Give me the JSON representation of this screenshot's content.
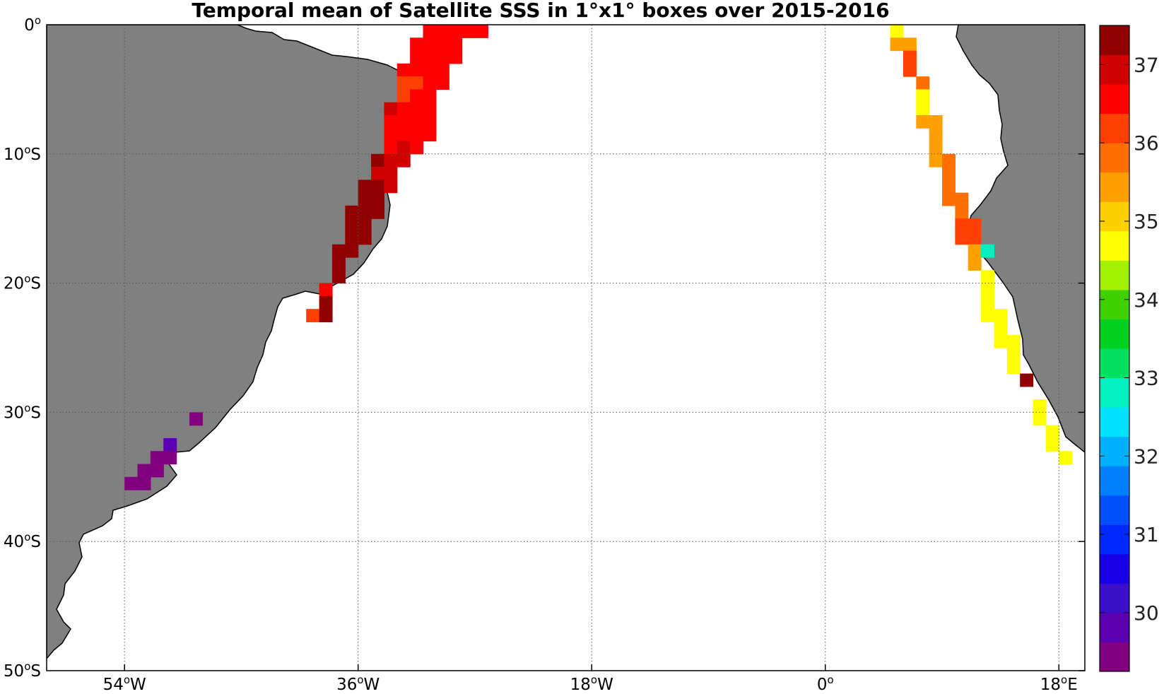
{
  "title": "Temporal mean of Satellite SSS in 1°x1° boxes over 2015-2016",
  "map": {
    "lon_range": [
      -60,
      20
    ],
    "lat_range": [
      -50,
      0
    ],
    "land_color": "#808080",
    "ocean_color": "#ffffff",
    "grid": "dotted",
    "lon_ticks": [
      {
        "value": -54,
        "base": "54",
        "deg": "o",
        "hemi": "W"
      },
      {
        "value": -36,
        "base": "36",
        "deg": "o",
        "hemi": "W"
      },
      {
        "value": -18,
        "base": "18",
        "deg": "o",
        "hemi": "W"
      },
      {
        "value": 0,
        "base": "0",
        "deg": "o",
        "hemi": ""
      },
      {
        "value": 18,
        "base": "18",
        "deg": "o",
        "hemi": "E"
      }
    ],
    "lat_ticks": [
      {
        "value": 0,
        "base": "0",
        "deg": "o",
        "hemi": ""
      },
      {
        "value": -10,
        "base": "10",
        "deg": "o",
        "hemi": "S"
      },
      {
        "value": -20,
        "base": "20",
        "deg": "o",
        "hemi": "S"
      },
      {
        "value": -30,
        "base": "30",
        "deg": "o",
        "hemi": "S"
      },
      {
        "value": -40,
        "base": "40",
        "deg": "o",
        "hemi": "S"
      },
      {
        "value": -50,
        "base": "50",
        "deg": "o",
        "hemi": "S"
      }
    ]
  },
  "colorbar": {
    "vmin": 29.25,
    "vmax": 37.5,
    "colors": [
      "#800080",
      "#5a00b0",
      "#3a10c8",
      "#1a00e8",
      "#0028ff",
      "#0050ff",
      "#0080ff",
      "#00b0ff",
      "#00e0ff",
      "#00f0c0",
      "#00e060",
      "#00d020",
      "#40d000",
      "#a0f000",
      "#ffff00",
      "#ffd000",
      "#ffa000",
      "#ff7000",
      "#ff4000",
      "#ff0000",
      "#d00000",
      "#900000"
    ],
    "ticks": [
      {
        "value": 30,
        "label": "30"
      },
      {
        "value": 31,
        "label": "31"
      },
      {
        "value": 32,
        "label": "32"
      },
      {
        "value": 33,
        "label": "33"
      },
      {
        "value": 34,
        "label": "34"
      },
      {
        "value": 35,
        "label": "35"
      },
      {
        "value": 36,
        "label": "36"
      },
      {
        "value": 37,
        "label": "37"
      }
    ]
  },
  "cells": [
    {
      "lon": -31,
      "lat": 0,
      "sss": 36.5
    },
    {
      "lon": -30,
      "lat": 0,
      "sss": 36.5
    },
    {
      "lon": -29,
      "lat": 0,
      "sss": 36.5
    },
    {
      "lon": -28,
      "lat": 0,
      "sss": 36.5
    },
    {
      "lon": -27,
      "lat": 0,
      "sss": 36.5
    },
    {
      "lon": -32,
      "lat": -1,
      "sss": 36.5
    },
    {
      "lon": -31,
      "lat": -1,
      "sss": 36.5
    },
    {
      "lon": -30,
      "lat": -1,
      "sss": 36.5
    },
    {
      "lon": -29,
      "lat": -1,
      "sss": 36.5
    },
    {
      "lon": -32,
      "lat": -2,
      "sss": 36.5
    },
    {
      "lon": -31,
      "lat": -2,
      "sss": 36.5
    },
    {
      "lon": -30,
      "lat": -2,
      "sss": 36.5
    },
    {
      "lon": -29,
      "lat": -2,
      "sss": 36.5
    },
    {
      "lon": -33,
      "lat": -3,
      "sss": 36.5
    },
    {
      "lon": -32,
      "lat": -3,
      "sss": 36.5
    },
    {
      "lon": -31,
      "lat": -3,
      "sss": 36.5
    },
    {
      "lon": -30,
      "lat": -3,
      "sss": 36.5
    },
    {
      "lon": -33,
      "lat": -4,
      "sss": 36.2
    },
    {
      "lon": -32,
      "lat": -4,
      "sss": 36.2
    },
    {
      "lon": -31,
      "lat": -4,
      "sss": 36.5
    },
    {
      "lon": -30,
      "lat": -4,
      "sss": 36.5
    },
    {
      "lon": -33,
      "lat": -5,
      "sss": 36.2
    },
    {
      "lon": -32,
      "lat": -5,
      "sss": 36.5
    },
    {
      "lon": -31,
      "lat": -5,
      "sss": 36.5
    },
    {
      "lon": -34,
      "lat": -6,
      "sss": 36.9
    },
    {
      "lon": -33,
      "lat": -6,
      "sss": 36.5
    },
    {
      "lon": -32,
      "lat": -6,
      "sss": 36.5
    },
    {
      "lon": -31,
      "lat": -6,
      "sss": 36.5
    },
    {
      "lon": -34,
      "lat": -7,
      "sss": 36.5
    },
    {
      "lon": -33,
      "lat": -7,
      "sss": 36.5
    },
    {
      "lon": -32,
      "lat": -7,
      "sss": 36.5
    },
    {
      "lon": -31,
      "lat": -7,
      "sss": 36.5
    },
    {
      "lon": -34,
      "lat": -8,
      "sss": 36.5
    },
    {
      "lon": -33,
      "lat": -8,
      "sss": 36.5
    },
    {
      "lon": -32,
      "lat": -8,
      "sss": 36.5
    },
    {
      "lon": -31,
      "lat": -8,
      "sss": 36.5
    },
    {
      "lon": -34,
      "lat": -9,
      "sss": 36.5
    },
    {
      "lon": -33,
      "lat": -9,
      "sss": 36.9
    },
    {
      "lon": -32,
      "lat": -9,
      "sss": 36.5
    },
    {
      "lon": -35,
      "lat": -10,
      "sss": 37.3
    },
    {
      "lon": -34,
      "lat": -10,
      "sss": 36.9
    },
    {
      "lon": -33,
      "lat": -10,
      "sss": 36.9
    },
    {
      "lon": -35,
      "lat": -11,
      "sss": 36.9
    },
    {
      "lon": -34,
      "lat": -11,
      "sss": 36.9
    },
    {
      "lon": -36,
      "lat": -12,
      "sss": 37.3
    },
    {
      "lon": -35,
      "lat": -12,
      "sss": 37.3
    },
    {
      "lon": -34,
      "lat": -12,
      "sss": 36.9
    },
    {
      "lon": -36,
      "lat": -13,
      "sss": 37.3
    },
    {
      "lon": -35,
      "lat": -13,
      "sss": 37.3
    },
    {
      "lon": -37,
      "lat": -14,
      "sss": 37.3
    },
    {
      "lon": -36,
      "lat": -14,
      "sss": 37.3
    },
    {
      "lon": -35,
      "lat": -14,
      "sss": 37.3
    },
    {
      "lon": -37,
      "lat": -15,
      "sss": 37.3
    },
    {
      "lon": -36,
      "lat": -15,
      "sss": 37.3
    },
    {
      "lon": -37,
      "lat": -16,
      "sss": 37.3
    },
    {
      "lon": -36,
      "lat": -16,
      "sss": 37.3
    },
    {
      "lon": -38,
      "lat": -17,
      "sss": 37.3
    },
    {
      "lon": -37,
      "lat": -17,
      "sss": 37.3
    },
    {
      "lon": -38,
      "lat": -18,
      "sss": 37.3
    },
    {
      "lon": -38,
      "lat": -19,
      "sss": 37.3
    },
    {
      "lon": -39,
      "lat": -20,
      "sss": 36.5
    },
    {
      "lon": -39,
      "lat": -21,
      "sss": 37.3
    },
    {
      "lon": -40,
      "lat": -22,
      "sss": 36.2
    },
    {
      "lon": -39,
      "lat": -22,
      "sss": 37.3
    },
    {
      "lon": -49,
      "lat": -30,
      "sss": 29.6
    },
    {
      "lon": -51,
      "lat": -32,
      "sss": 29.9
    },
    {
      "lon": -52,
      "lat": -33,
      "sss": 29.6
    },
    {
      "lon": -51,
      "lat": -33,
      "sss": 29.6
    },
    {
      "lon": -53,
      "lat": -34,
      "sss": 29.4
    },
    {
      "lon": -52,
      "lat": -34,
      "sss": 29.4
    },
    {
      "lon": -54,
      "lat": -35,
      "sss": 29.4
    },
    {
      "lon": -53,
      "lat": -35,
      "sss": 29.4
    },
    {
      "lon": 5,
      "lat": 0,
      "sss": 34.5
    },
    {
      "lon": 5,
      "lat": -1,
      "sss": 35.4
    },
    {
      "lon": 6,
      "lat": -1,
      "sss": 35.4
    },
    {
      "lon": 6,
      "lat": -2,
      "sss": 36.2
    },
    {
      "lon": 6,
      "lat": -3,
      "sss": 36.2
    },
    {
      "lon": 7,
      "lat": -4,
      "sss": 35.8
    },
    {
      "lon": 7,
      "lat": -5,
      "sss": 34.5
    },
    {
      "lon": 7,
      "lat": -6,
      "sss": 34.8
    },
    {
      "lon": 7,
      "lat": -7,
      "sss": 35.4
    },
    {
      "lon": 8,
      "lat": -7,
      "sss": 35.4
    },
    {
      "lon": 8,
      "lat": -8,
      "sss": 35.4
    },
    {
      "lon": 8,
      "lat": -9,
      "sss": 35.4
    },
    {
      "lon": 8,
      "lat": -10,
      "sss": 35.4
    },
    {
      "lon": 9,
      "lat": -10,
      "sss": 35.8
    },
    {
      "lon": 9,
      "lat": -11,
      "sss": 35.8
    },
    {
      "lon": 9,
      "lat": -12,
      "sss": 35.8
    },
    {
      "lon": 9,
      "lat": -13,
      "sss": 35.8
    },
    {
      "lon": 10,
      "lat": -13,
      "sss": 35.8
    },
    {
      "lon": 10,
      "lat": -14,
      "sss": 35.8
    },
    {
      "lon": 10,
      "lat": -15,
      "sss": 36.2
    },
    {
      "lon": 11,
      "lat": -15,
      "sss": 36.2
    },
    {
      "lon": 10,
      "lat": -16,
      "sss": 36.2
    },
    {
      "lon": 11,
      "lat": -16,
      "sss": 36.2
    },
    {
      "lon": 11,
      "lat": -17,
      "sss": 35.4
    },
    {
      "lon": 11,
      "lat": -18,
      "sss": 35.4
    },
    {
      "lon": 12,
      "lat": -17,
      "sss": 32.8
    },
    {
      "lon": 12,
      "lat": -19,
      "sss": 34.8
    },
    {
      "lon": 12,
      "lat": -20,
      "sss": 34.8
    },
    {
      "lon": 12,
      "lat": -21,
      "sss": 34.8
    },
    {
      "lon": 12,
      "lat": -22,
      "sss": 34.8
    },
    {
      "lon": 13,
      "lat": -22,
      "sss": 34.8
    },
    {
      "lon": 13,
      "lat": -23,
      "sss": 34.5
    },
    {
      "lon": 13,
      "lat": -24,
      "sss": 34.5
    },
    {
      "lon": 14,
      "lat": -24,
      "sss": 34.5
    },
    {
      "lon": 14,
      "lat": -25,
      "sss": 34.8
    },
    {
      "lon": 14,
      "lat": -26,
      "sss": 34.8
    },
    {
      "lon": 15,
      "lat": -27,
      "sss": 37.3
    },
    {
      "lon": 16,
      "lat": -29,
      "sss": 34.5
    },
    {
      "lon": 16,
      "lat": -30,
      "sss": 34.5
    },
    {
      "lon": 17,
      "lat": -31,
      "sss": 34.8
    },
    {
      "lon": 17,
      "lat": -32,
      "sss": 34.8
    },
    {
      "lon": 18,
      "lat": -33,
      "sss": 34.8
    }
  ]
}
